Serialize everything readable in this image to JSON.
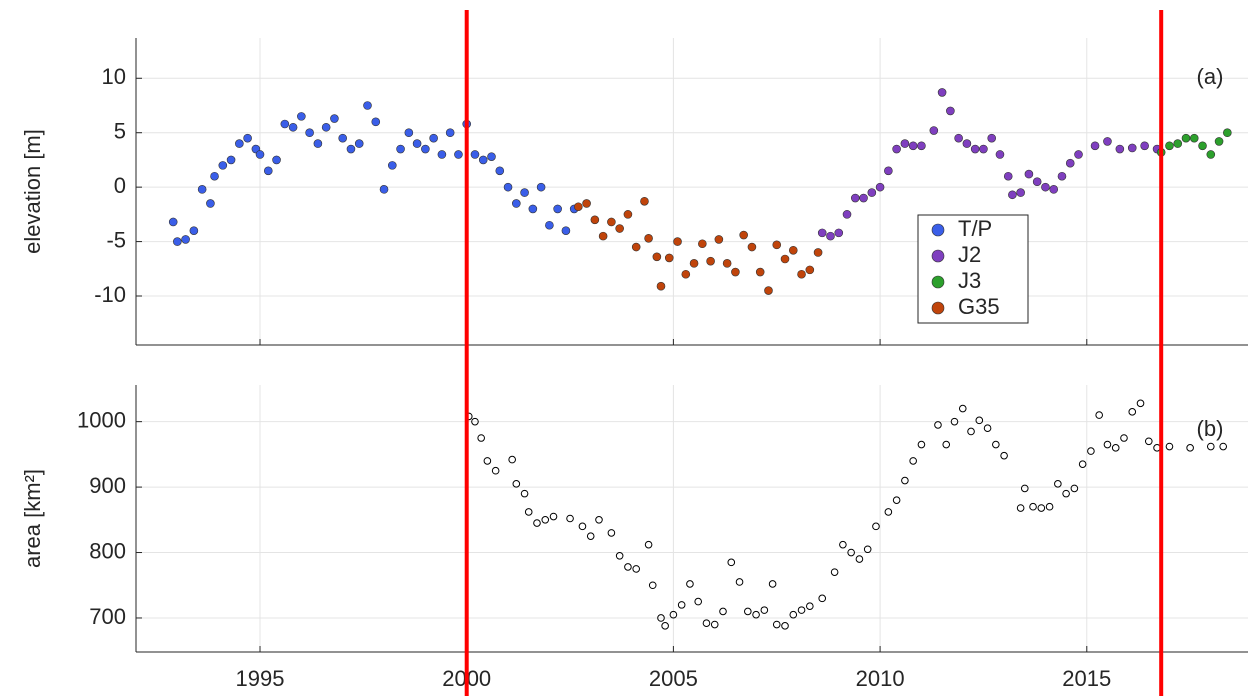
{
  "chart_data": [
    {
      "type": "scatter",
      "y_label": "elevation [m]",
      "panel_label": "(a)",
      "xlim": [
        1992,
        2018.9
      ],
      "xticks": [
        1995,
        2000,
        2005,
        2010,
        2015
      ],
      "ylim": [
        -14.5,
        13.7
      ],
      "yticks": [
        -10,
        -5,
        0,
        5,
        10
      ],
      "grid": true,
      "series": [
        {
          "name": "T/P",
          "color": "#3a5ee8",
          "x": [
            1992.9,
            1993.0,
            1993.2,
            1993.4,
            1993.6,
            1993.8,
            1993.9,
            1994.1,
            1994.3,
            1994.5,
            1994.7,
            1994.9,
            1995.0,
            1995.2,
            1995.4,
            1995.6,
            1995.8,
            1996.0,
            1996.2,
            1996.4,
            1996.6,
            1996.8,
            1997.0,
            1997.2,
            1997.4,
            1997.6,
            1997.8,
            1998.0,
            1998.2,
            1998.4,
            1998.6,
            1998.8,
            1999.0,
            1999.2,
            1999.4,
            1999.6,
            1999.8,
            2000.0,
            2000.2,
            2000.4,
            2000.6,
            2000.8,
            2001.0,
            2001.2,
            2001.4,
            2001.6,
            2001.8,
            2002.0,
            2002.2,
            2002.4,
            2002.6
          ],
          "values": [
            -3.2,
            -5,
            -4.8,
            -4,
            -0.2,
            -1.5,
            1,
            2,
            2.5,
            4,
            4.5,
            3.5,
            3,
            1.5,
            2.5,
            5.8,
            5.5,
            6.5,
            5,
            4,
            5.5,
            6.3,
            4.5,
            3.5,
            4,
            7.5,
            6,
            -0.2,
            2,
            3.5,
            5,
            4,
            3.5,
            4.5,
            3,
            5,
            3,
            5.8,
            3,
            2.5,
            2.8,
            1.5,
            0,
            -1.5,
            -0.5,
            -2,
            0,
            -3.5,
            -2,
            -4,
            -2
          ]
        },
        {
          "name": "J2",
          "color": "#7f3fbf",
          "x": [
            2008.6,
            2008.8,
            2009.0,
            2009.2,
            2009.4,
            2009.6,
            2009.8,
            2010.0,
            2010.2,
            2010.4,
            2010.6,
            2010.8,
            2011.0,
            2011.3,
            2011.5,
            2011.7,
            2011.9,
            2012.1,
            2012.3,
            2012.5,
            2012.7,
            2012.9,
            2013.1,
            2013.2,
            2013.4,
            2013.6,
            2013.8,
            2014.0,
            2014.2,
            2014.4,
            2014.6,
            2014.8,
            2015.2,
            2015.5,
            2015.8,
            2016.1,
            2016.4,
            2016.7
          ],
          "values": [
            -4.2,
            -4.5,
            -4.2,
            -2.5,
            -1,
            -1,
            -0.5,
            0,
            1.5,
            3.5,
            4,
            3.8,
            3.8,
            5.2,
            8.7,
            7,
            4.5,
            4,
            3.5,
            3.5,
            4.5,
            3,
            1,
            -0.7,
            -0.5,
            1.2,
            0.5,
            0,
            -0.2,
            1,
            2.2,
            3,
            3.8,
            4.2,
            3.5,
            3.6,
            3.8,
            3.5
          ]
        },
        {
          "name": "J3",
          "color": "#2ca02c",
          "x": [
            2016.8,
            2017.0,
            2017.2,
            2017.4,
            2017.6,
            2017.8,
            2018.0,
            2018.2,
            2018.4
          ],
          "values": [
            3.2,
            3.8,
            4,
            4.5,
            4.5,
            3.8,
            3,
            4.2,
            5
          ]
        },
        {
          "name": "G35",
          "color": "#c0440b",
          "x": [
            2002.7,
            2002.9,
            2003.1,
            2003.3,
            2003.5,
            2003.7,
            2003.9,
            2004.1,
            2004.3,
            2004.4,
            2004.6,
            2004.7,
            2004.9,
            2005.1,
            2005.3,
            2005.5,
            2005.7,
            2005.9,
            2006.1,
            2006.3,
            2006.5,
            2006.7,
            2006.9,
            2007.1,
            2007.3,
            2007.5,
            2007.7,
            2007.9,
            2008.1,
            2008.3,
            2008.5
          ],
          "values": [
            -1.8,
            -1.5,
            -3,
            -4.5,
            -3.2,
            -3.8,
            -2.5,
            -5.5,
            -1.3,
            -4.7,
            -6.4,
            -9.1,
            -6.5,
            -5,
            -8,
            -7,
            -5.2,
            -6.8,
            -4.8,
            -7,
            -7.8,
            -4.4,
            -5.5,
            -7.8,
            -9.5,
            -5.3,
            -6.6,
            -5.8,
            -8,
            -7.6,
            -6
          ]
        }
      ]
    },
    {
      "type": "scatter",
      "y_label": "area [km²]",
      "panel_label": "(b)",
      "xlim": [
        1992,
        2018.9
      ],
      "xticks": [
        1995,
        2000,
        2005,
        2010,
        2015
      ],
      "ylim": [
        648,
        1056
      ],
      "yticks": [
        700,
        800,
        900,
        1000
      ],
      "grid": true,
      "series": [
        {
          "color": "#000000",
          "x": [
            2000.05,
            2000.2,
            2000.35,
            2000.5,
            2000.7,
            2001.1,
            2001.2,
            2001.4,
            2001.5,
            2001.7,
            2001.9,
            2002.1,
            2002.5,
            2002.8,
            2003.0,
            2003.2,
            2003.5,
            2003.7,
            2003.9,
            2004.1,
            2004.4,
            2004.5,
            2004.7,
            2004.8,
            2005.0,
            2005.2,
            2005.4,
            2005.6,
            2005.8,
            2006.0,
            2006.2,
            2006.4,
            2006.6,
            2006.8,
            2007.0,
            2007.2,
            2007.4,
            2007.5,
            2007.7,
            2007.9,
            2008.1,
            2008.3,
            2008.6,
            2008.9,
            2009.1,
            2009.3,
            2009.5,
            2009.7,
            2009.9,
            2010.2,
            2010.4,
            2010.6,
            2010.8,
            2011.0,
            2011.4,
            2011.6,
            2011.8,
            2012.0,
            2012.2,
            2012.4,
            2012.6,
            2012.8,
            2013.0,
            2013.4,
            2013.5,
            2013.7,
            2013.9,
            2014.1,
            2014.3,
            2014.5,
            2014.7,
            2014.9,
            2015.1,
            2015.3,
            2015.5,
            2015.7,
            2015.9,
            2016.1,
            2016.3,
            2016.5,
            2016.7,
            2017.0,
            2017.5,
            2018.0,
            2018.3
          ],
          "values": [
            1008,
            1000,
            975,
            940,
            925,
            942,
            905,
            890,
            862,
            845,
            850,
            855,
            852,
            840,
            825,
            850,
            830,
            795,
            778,
            775,
            812,
            750,
            700,
            688,
            705,
            720,
            752,
            725,
            692,
            690,
            710,
            785,
            755,
            710,
            705,
            712,
            752,
            690,
            688,
            705,
            712,
            718,
            730,
            770,
            812,
            800,
            790,
            805,
            840,
            862,
            880,
            910,
            940,
            965,
            995,
            965,
            1000,
            1020,
            985,
            1002,
            990,
            965,
            948,
            868,
            898,
            870,
            868,
            870,
            905,
            890,
            898,
            935,
            955,
            1010,
            965,
            960,
            975,
            1015,
            1028,
            970,
            960,
            962,
            960,
            962,
            962
          ]
        }
      ]
    }
  ],
  "reference_lines": {
    "color": "#ff0000",
    "x": [
      2000,
      2016.8
    ]
  }
}
